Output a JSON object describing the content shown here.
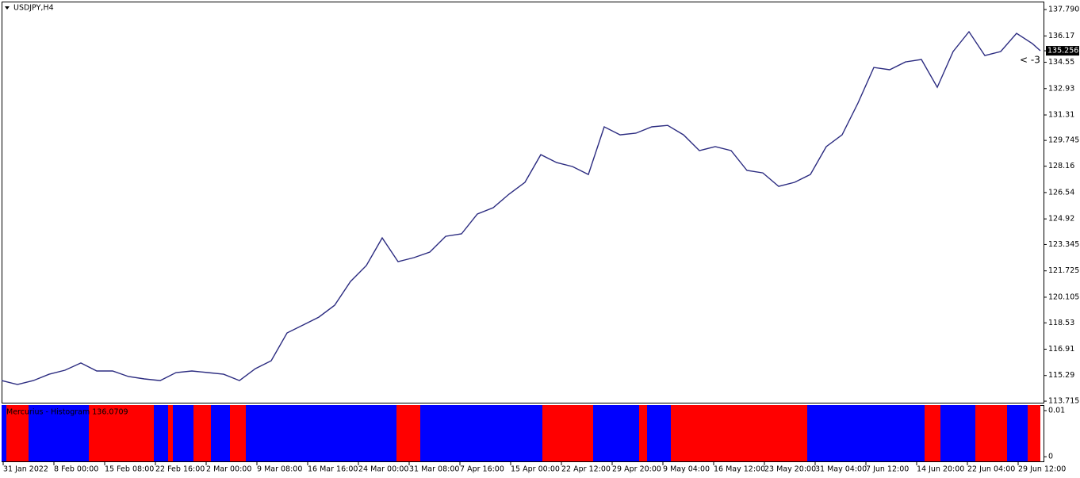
{
  "chart_data": [
    {
      "type": "line",
      "title": "USDJPY,H4",
      "color": "#2b2b80",
      "xlim": [
        0,
        657
      ],
      "xticks": [
        {
          "value": 1,
          "label": "31 Jan 2022"
        },
        {
          "value": 33,
          "label": "8 Feb 00:00"
        },
        {
          "value": 65,
          "label": "15 Feb 08:00"
        },
        {
          "value": 97,
          "label": "22 Feb 16:00"
        },
        {
          "value": 129,
          "label": "2 Mar 00:00"
        },
        {
          "value": 161,
          "label": "9 Mar 08:00"
        },
        {
          "value": 193,
          "label": "16 Mar 16:00"
        },
        {
          "value": 225,
          "label": "24 Mar 00:00"
        },
        {
          "value": 257,
          "label": "31 Mar 08:00"
        },
        {
          "value": 289,
          "label": "7 Apr 16:00"
        },
        {
          "value": 321,
          "label": "15 Apr 00:00"
        },
        {
          "value": 353,
          "label": "22 Apr 12:00"
        },
        {
          "value": 385,
          "label": "29 Apr 20:00"
        },
        {
          "value": 417,
          "label": "9 May 04:00"
        },
        {
          "value": 449,
          "label": "16 May 12:00"
        },
        {
          "value": 481,
          "label": "23 May 20:00"
        },
        {
          "value": 513,
          "label": "31 May 04:00"
        },
        {
          "value": 545,
          "label": "7 Jun 12:00"
        },
        {
          "value": 577,
          "label": "14 Jun 20:00"
        },
        {
          "value": 609,
          "label": "22 Jun 04:00"
        },
        {
          "value": 641,
          "label": "29 Jun 12:00"
        }
      ],
      "ylim": [
        113.62,
        138.28
      ],
      "yticks": [
        {
          "value": 137.79,
          "label": "137.790"
        },
        136.17,
        134.55,
        132.93,
        131.31,
        129.745,
        128.16,
        126.54,
        124.92,
        123.345,
        121.725,
        120.105,
        118.53,
        116.91,
        115.29,
        113.715
      ],
      "x": [
        0,
        10,
        20,
        30,
        40,
        50,
        60,
        70,
        80,
        90,
        100,
        110,
        120,
        130,
        140,
        150,
        160,
        170,
        180,
        190,
        200,
        210,
        220,
        230,
        240,
        250,
        260,
        270,
        280,
        290,
        300,
        310,
        320,
        330,
        340,
        350,
        360,
        370,
        380,
        390,
        400,
        410,
        420,
        430,
        440,
        450,
        460,
        470,
        480,
        490,
        500,
        510,
        520,
        530,
        540,
        550,
        560,
        570,
        580,
        590,
        600,
        610,
        620,
        630,
        640,
        650,
        655
      ],
      "values": [
        114.98,
        114.74,
        114.98,
        115.37,
        115.62,
        116.06,
        115.57,
        115.57,
        115.23,
        115.08,
        114.98,
        115.47,
        115.57,
        115.47,
        115.37,
        114.98,
        115.71,
        116.2,
        117.91,
        118.39,
        118.88,
        119.61,
        121.07,
        122.05,
        123.75,
        122.29,
        122.54,
        122.88,
        123.85,
        124.0,
        125.22,
        125.61,
        126.44,
        127.17,
        128.87,
        128.38,
        128.14,
        127.65,
        130.58,
        130.09,
        130.19,
        130.58,
        130.67,
        130.09,
        129.12,
        129.36,
        129.12,
        127.9,
        127.75,
        126.92,
        127.17,
        127.65,
        129.36,
        130.09,
        132.04,
        134.23,
        134.09,
        134.57,
        134.72,
        133.01,
        135.21,
        136.43,
        134.96,
        135.21,
        136.33,
        135.69,
        135.26
      ],
      "last_price": 135.256,
      "annotation": "< -3"
    },
    {
      "type": "histogram",
      "title": "Mercurius - Histogram 136.0709",
      "ylim": [
        -0.001,
        0.0112
      ],
      "yticks": [
        0.01,
        0
      ],
      "segments": [
        {
          "color": "#0000ff",
          "start": 0,
          "end": 3,
          "value": 0.0112
        },
        {
          "color": "#ff0000",
          "start": 3,
          "end": 17,
          "value": 0.0112
        },
        {
          "color": "#0000ff",
          "start": 17,
          "end": 55,
          "value": 0.0112
        },
        {
          "color": "#ff0000",
          "start": 55,
          "end": 96,
          "value": 0.0112
        },
        {
          "color": "#0000ff",
          "start": 96,
          "end": 105,
          "value": 0.0112
        },
        {
          "color": "#ff0000",
          "start": 105,
          "end": 108,
          "value": 0.0112
        },
        {
          "color": "#0000ff",
          "start": 108,
          "end": 121,
          "value": 0.0112
        },
        {
          "color": "#ff0000",
          "start": 121,
          "end": 132,
          "value": 0.0112
        },
        {
          "color": "#0000ff",
          "start": 132,
          "end": 144,
          "value": 0.0112
        },
        {
          "color": "#ff0000",
          "start": 144,
          "end": 154,
          "value": 0.0112
        },
        {
          "color": "#0000ff",
          "start": 154,
          "end": 249,
          "value": 0.0112
        },
        {
          "color": "#ff0000",
          "start": 249,
          "end": 264,
          "value": 0.0112
        },
        {
          "color": "#0000ff",
          "start": 264,
          "end": 341,
          "value": 0.0112
        },
        {
          "color": "#ff0000",
          "start": 341,
          "end": 373,
          "value": 0.0112
        },
        {
          "color": "#0000ff",
          "start": 373,
          "end": 402,
          "value": 0.0112
        },
        {
          "color": "#ff0000",
          "start": 402,
          "end": 407,
          "value": 0.0112
        },
        {
          "color": "#0000ff",
          "start": 407,
          "end": 422,
          "value": 0.0112
        },
        {
          "color": "#ff0000",
          "start": 422,
          "end": 508,
          "value": 0.0112
        },
        {
          "color": "#0000ff",
          "start": 508,
          "end": 582,
          "value": 0.0112
        },
        {
          "color": "#ff0000",
          "start": 582,
          "end": 592,
          "value": 0.0112
        },
        {
          "color": "#0000ff",
          "start": 592,
          "end": 614,
          "value": 0.0112
        },
        {
          "color": "#ff0000",
          "start": 614,
          "end": 634,
          "value": 0.0112
        },
        {
          "color": "#0000ff",
          "start": 634,
          "end": 647,
          "value": 0.0112
        },
        {
          "color": "#ff0000",
          "start": 647,
          "end": 655,
          "value": 0.0112
        }
      ]
    }
  ]
}
